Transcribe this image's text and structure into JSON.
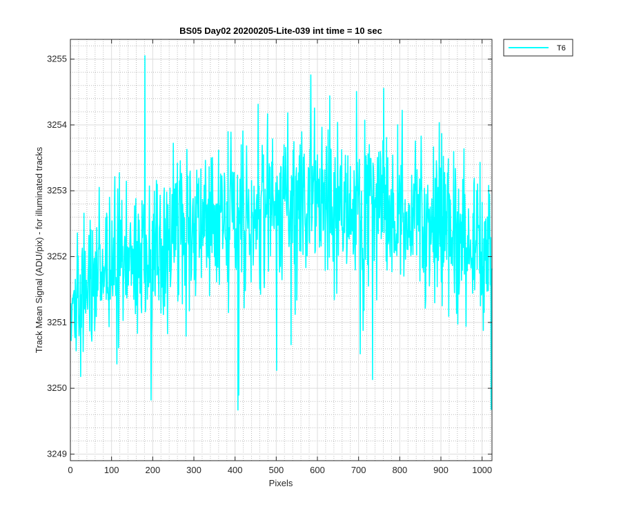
{
  "chart_data": {
    "type": "line",
    "title": "BS05 Day02 20200205-Lite-039 int time = 10 sec",
    "xlabel": "Pixels",
    "ylabel": "Track Mean Signal (ADU/pix) - for illuminated tracks",
    "xlim": [
      0,
      1024
    ],
    "ylim": [
      3248.9,
      3255.3
    ],
    "x_ticks": [
      0,
      100,
      200,
      300,
      400,
      500,
      600,
      700,
      800,
      900,
      1000
    ],
    "y_ticks": [
      3249,
      3250,
      3251,
      3252,
      3253,
      3254,
      3255
    ],
    "x_tick_labels": [
      "0",
      "100",
      "200",
      "300",
      "400",
      "500",
      "600",
      "700",
      "800",
      "900",
      "1000"
    ],
    "y_tick_labels": [
      "3249",
      "3250",
      "3251",
      "3252",
      "3253",
      "3254",
      "3255"
    ],
    "grid": true,
    "minor_grid": true,
    "legend_position": "outside-top-right",
    "series": [
      {
        "name": "T6",
        "color": "#00FFFF",
        "x_start": 1,
        "x_step": 1,
        "trend_x": [
          0,
          50,
          100,
          150,
          200,
          250,
          300,
          350,
          400,
          450,
          500,
          550,
          600,
          650,
          700,
          750,
          800,
          850,
          900,
          950,
          1000,
          1024
        ],
        "trend_y": [
          3251.0,
          3251.6,
          3251.9,
          3252.0,
          3252.1,
          3252.2,
          3252.3,
          3252.5,
          3252.6,
          3252.6,
          3252.7,
          3252.7,
          3252.8,
          3252.8,
          3252.8,
          3252.7,
          3252.7,
          3252.6,
          3252.5,
          3252.3,
          3252.0,
          3252.0
        ],
        "noise_sd": 0.6,
        "min": 3248.95,
        "max": 3255.3
      }
    ]
  }
}
